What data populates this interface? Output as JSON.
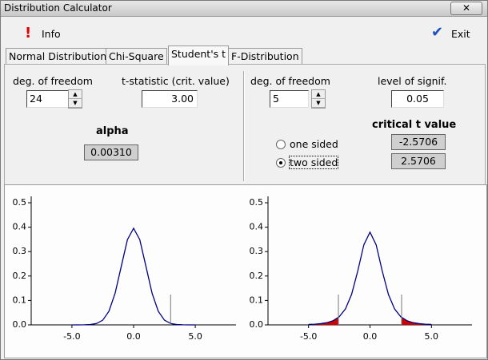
{
  "window": {
    "title": "Distribution Calculator"
  },
  "toolbar": {
    "info": "Info",
    "exit": "Exit"
  },
  "tabs": [
    "Normal Distribution",
    "Chi-Square",
    "Student's t",
    "F-Distribution"
  ],
  "active_tab": 2,
  "left_panel": {
    "dof_label": "deg. of freedom",
    "dof_value": "24",
    "stat_label": "t-statistic (crit. value)",
    "stat_value": "3.00",
    "result_label": "alpha",
    "result_value": "0.00310"
  },
  "right_panel": {
    "dof_label": "deg. of freedom",
    "dof_value": "5",
    "signif_label": "level of signif.",
    "signif_value": "0.05",
    "result_label": "critical t value",
    "result_values": [
      "-2.5706",
      "2.5706"
    ],
    "options": [
      "one sided",
      "two sided"
    ],
    "selected_option": 1
  },
  "charts": [
    {
      "type": "line",
      "color": "#000080",
      "x": [
        -5,
        -4.5,
        -4,
        -3.5,
        -3,
        -2.5,
        -2,
        -1.5,
        -1,
        -0.5,
        0,
        0.5,
        1,
        1.5,
        2,
        2.5,
        3,
        3.5,
        4,
        4.5,
        5
      ],
      "values": [
        0,
        0.0001,
        0.0003,
        0.0014,
        0.0056,
        0.0194,
        0.0557,
        0.1291,
        0.2396,
        0.349,
        0.3956,
        0.349,
        0.2396,
        0.1291,
        0.0557,
        0.0194,
        0.0056,
        0.0014,
        0.0003,
        0.0001,
        0
      ],
      "markers": [
        3
      ],
      "xlim": [
        -8.3,
        8.3
      ],
      "ylim": [
        0,
        0.5
      ],
      "xticks": [
        {
          "value": -5,
          "label": "-5.0"
        },
        {
          "value": 0,
          "label": "0.0"
        },
        {
          "value": 5,
          "label": "5.0"
        }
      ],
      "yticks": [
        {
          "value": 0,
          "label": "0.0"
        },
        0.1,
        0.2,
        0.3,
        0.4,
        0.5
      ]
    },
    {
      "type": "line",
      "color": "#000080",
      "shade_color": "#cc0000",
      "x": [
        -5,
        -4.5,
        -4,
        -3.5,
        -3,
        -2.5,
        -2,
        -1.5,
        -1,
        -0.5,
        0,
        0.5,
        1,
        1.5,
        2,
        2.5,
        3,
        3.5,
        4,
        4.5,
        5
      ],
      "values": [
        0.0018,
        0.0029,
        0.0051,
        0.0092,
        0.0173,
        0.0334,
        0.0651,
        0.1245,
        0.2197,
        0.3279,
        0.3796,
        0.3279,
        0.2197,
        0.1245,
        0.0651,
        0.0334,
        0.0173,
        0.0092,
        0.0051,
        0.0029,
        0.0018
      ],
      "markers": [
        -2.5706,
        2.5706
      ],
      "xlim": [
        -8.3,
        8.3
      ],
      "ylim": [
        0,
        0.5
      ],
      "xticks": [
        {
          "value": -5,
          "label": "-5.0"
        },
        {
          "value": 0,
          "label": "0.0"
        },
        {
          "value": 5,
          "label": "5.0"
        }
      ],
      "yticks": [
        {
          "value": 0,
          "label": "0.0"
        },
        0.1,
        0.2,
        0.3,
        0.4,
        0.5
      ]
    }
  ]
}
